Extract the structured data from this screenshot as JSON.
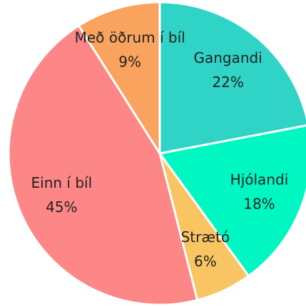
{
  "chart_data": {
    "type": "pie",
    "categories": [
      "Gangandi",
      "Hjólandi",
      "Strætó",
      "Einn í bíl",
      "Með öðrum í bíl"
    ],
    "values": [
      22,
      18,
      6,
      45,
      9
    ],
    "value_labels": [
      "22%",
      "18%",
      "6%",
      "45%",
      "9%"
    ],
    "colors": [
      "#2fd4c7",
      "#00f7c2",
      "#f9c462",
      "#fd8686",
      "#f9a35f"
    ]
  }
}
